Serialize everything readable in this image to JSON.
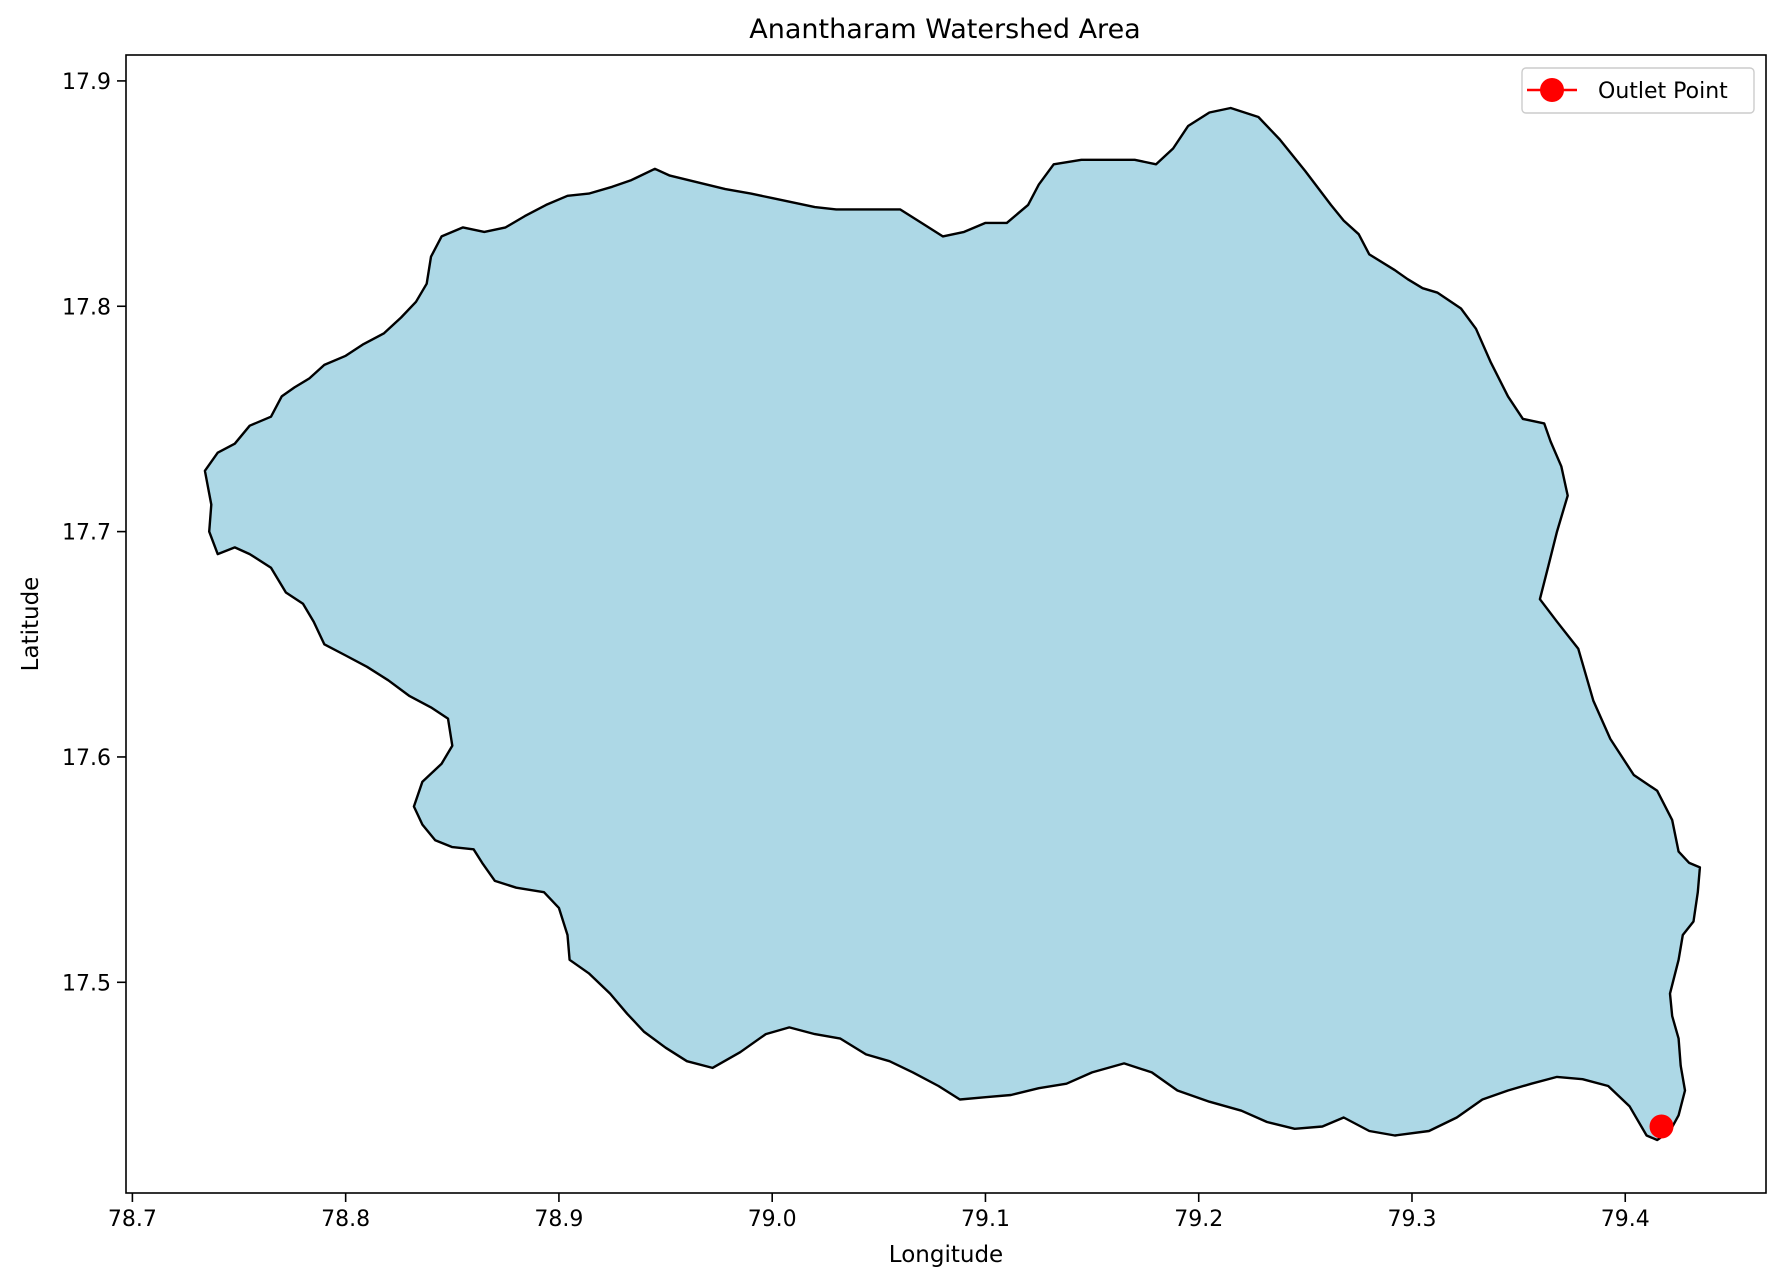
{
  "chart_data": {
    "type": "map",
    "title": "Anantharam Watershed Area",
    "xlabel": "Longitude",
    "ylabel": "Latitude",
    "xlim": [
      78.697,
      79.466
    ],
    "ylim": [
      17.4065,
      17.9115
    ],
    "xticks": [
      {
        "value": 78.7,
        "label": "78.7"
      },
      {
        "value": 78.8,
        "label": "78.8"
      },
      {
        "value": 78.9,
        "label": "78.9"
      },
      {
        "value": 79.0,
        "label": "79.0"
      },
      {
        "value": 79.1,
        "label": "79.1"
      },
      {
        "value": 79.2,
        "label": "79.2"
      },
      {
        "value": 79.3,
        "label": "79.3"
      },
      {
        "value": 79.4,
        "label": "79.4"
      }
    ],
    "yticks": [
      {
        "value": 17.5,
        "label": "17.5"
      },
      {
        "value": 17.6,
        "label": "17.6"
      },
      {
        "value": 17.7,
        "label": "17.7"
      },
      {
        "value": 17.8,
        "label": "17.8"
      },
      {
        "value": 17.9,
        "label": "17.9"
      }
    ],
    "grid": false,
    "legend": {
      "position": "top-right",
      "entries": [
        {
          "label": "Outlet Point",
          "color": "#ff0000",
          "marker": "circle-line"
        }
      ]
    },
    "watershed": {
      "fill_color": "#add8e6",
      "edge_color": "#000000",
      "boundary": [
        [
          78.734,
          17.727
        ],
        [
          78.74,
          17.735
        ],
        [
          78.748,
          17.739
        ],
        [
          78.755,
          17.747
        ],
        [
          78.765,
          17.751
        ],
        [
          78.77,
          17.76
        ],
        [
          78.776,
          17.764
        ],
        [
          78.783,
          17.768
        ],
        [
          78.79,
          17.774
        ],
        [
          78.8,
          17.778
        ],
        [
          78.808,
          17.783
        ],
        [
          78.818,
          17.788
        ],
        [
          78.826,
          17.795
        ],
        [
          78.833,
          17.802
        ],
        [
          78.838,
          17.81
        ],
        [
          78.84,
          17.822
        ],
        [
          78.845,
          17.831
        ],
        [
          78.855,
          17.835
        ],
        [
          78.865,
          17.833
        ],
        [
          78.875,
          17.835
        ],
        [
          78.884,
          17.84
        ],
        [
          78.894,
          17.845
        ],
        [
          78.904,
          17.849
        ],
        [
          78.914,
          17.85
        ],
        [
          78.925,
          17.853
        ],
        [
          78.934,
          17.856
        ],
        [
          78.945,
          17.861
        ],
        [
          78.952,
          17.858
        ],
        [
          78.965,
          17.855
        ],
        [
          78.978,
          17.852
        ],
        [
          78.99,
          17.85
        ],
        [
          79.0,
          17.848
        ],
        [
          79.01,
          17.846
        ],
        [
          79.02,
          17.844
        ],
        [
          79.03,
          17.843
        ],
        [
          79.04,
          17.843
        ],
        [
          79.05,
          17.843
        ],
        [
          79.06,
          17.843
        ],
        [
          79.07,
          17.837
        ],
        [
          79.08,
          17.831
        ],
        [
          79.09,
          17.833
        ],
        [
          79.1,
          17.837
        ],
        [
          79.11,
          17.837
        ],
        [
          79.12,
          17.845
        ],
        [
          79.125,
          17.854
        ],
        [
          79.132,
          17.863
        ],
        [
          79.145,
          17.865
        ],
        [
          79.158,
          17.865
        ],
        [
          79.17,
          17.865
        ],
        [
          79.18,
          17.863
        ],
        [
          79.188,
          17.87
        ],
        [
          79.195,
          17.88
        ],
        [
          79.205,
          17.886
        ],
        [
          79.215,
          17.888
        ],
        [
          79.228,
          17.884
        ],
        [
          79.238,
          17.874
        ],
        [
          79.25,
          17.86
        ],
        [
          79.262,
          17.845
        ],
        [
          79.268,
          17.838
        ],
        [
          79.275,
          17.832
        ],
        [
          79.28,
          17.823
        ],
        [
          79.292,
          17.816
        ],
        [
          79.298,
          17.812
        ],
        [
          79.305,
          17.808
        ],
        [
          79.312,
          17.806
        ],
        [
          79.323,
          17.799
        ],
        [
          79.33,
          17.79
        ],
        [
          79.337,
          17.775
        ],
        [
          79.345,
          17.76
        ],
        [
          79.352,
          17.75
        ],
        [
          79.362,
          17.748
        ],
        [
          79.365,
          17.74
        ],
        [
          79.37,
          17.729
        ],
        [
          79.373,
          17.716
        ],
        [
          79.368,
          17.7
        ],
        [
          79.364,
          17.685
        ],
        [
          79.36,
          17.67
        ],
        [
          79.368,
          17.66
        ],
        [
          79.378,
          17.648
        ],
        [
          79.385,
          17.625
        ],
        [
          79.393,
          17.608
        ],
        [
          79.404,
          17.592
        ],
        [
          79.415,
          17.585
        ],
        [
          79.422,
          17.572
        ],
        [
          79.425,
          17.558
        ],
        [
          79.43,
          17.553
        ],
        [
          79.435,
          17.551
        ],
        [
          79.434,
          17.54
        ],
        [
          79.432,
          17.527
        ],
        [
          79.427,
          17.521
        ],
        [
          79.425,
          17.51
        ],
        [
          79.421,
          17.495
        ],
        [
          79.422,
          17.485
        ],
        [
          79.425,
          17.475
        ],
        [
          79.426,
          17.463
        ],
        [
          79.428,
          17.452
        ],
        [
          79.425,
          17.441
        ],
        [
          79.421,
          17.434
        ],
        [
          79.415,
          17.43
        ],
        [
          79.41,
          17.432
        ],
        [
          79.402,
          17.445
        ],
        [
          79.392,
          17.454
        ],
        [
          79.38,
          17.457
        ],
        [
          79.368,
          17.458
        ],
        [
          79.356,
          17.455
        ],
        [
          79.345,
          17.452
        ],
        [
          79.333,
          17.448
        ],
        [
          79.321,
          17.44
        ],
        [
          79.308,
          17.434
        ],
        [
          79.292,
          17.432
        ],
        [
          79.28,
          17.434
        ],
        [
          79.268,
          17.44
        ],
        [
          79.258,
          17.436
        ],
        [
          79.245,
          17.435
        ],
        [
          79.232,
          17.438
        ],
        [
          79.22,
          17.443
        ],
        [
          79.205,
          17.447
        ],
        [
          79.19,
          17.452
        ],
        [
          79.178,
          17.46
        ],
        [
          79.165,
          17.464
        ],
        [
          79.15,
          17.46
        ],
        [
          79.138,
          17.455
        ],
        [
          79.125,
          17.453
        ],
        [
          79.112,
          17.45
        ],
        [
          79.1,
          17.449
        ],
        [
          79.088,
          17.448
        ],
        [
          79.078,
          17.454
        ],
        [
          79.066,
          17.46
        ],
        [
          79.055,
          17.465
        ],
        [
          79.044,
          17.468
        ],
        [
          79.032,
          17.475
        ],
        [
          79.02,
          17.477
        ],
        [
          79.008,
          17.48
        ],
        [
          78.997,
          17.477
        ],
        [
          78.985,
          17.469
        ],
        [
          78.972,
          17.462
        ],
        [
          78.96,
          17.465
        ],
        [
          78.95,
          17.471
        ],
        [
          78.94,
          17.478
        ],
        [
          78.932,
          17.486
        ],
        [
          78.924,
          17.495
        ],
        [
          78.914,
          17.504
        ],
        [
          78.905,
          17.51
        ],
        [
          78.904,
          17.521
        ],
        [
          78.9,
          17.533
        ],
        [
          78.893,
          17.54
        ],
        [
          78.88,
          17.542
        ],
        [
          78.87,
          17.545
        ],
        [
          78.864,
          17.553
        ],
        [
          78.86,
          17.559
        ],
        [
          78.85,
          17.56
        ],
        [
          78.842,
          17.563
        ],
        [
          78.836,
          17.57
        ],
        [
          78.832,
          17.578
        ],
        [
          78.836,
          17.589
        ],
        [
          78.845,
          17.597
        ],
        [
          78.85,
          17.605
        ],
        [
          78.848,
          17.617
        ],
        [
          78.84,
          17.622
        ],
        [
          78.83,
          17.627
        ],
        [
          78.82,
          17.634
        ],
        [
          78.81,
          17.64
        ],
        [
          78.8,
          17.645
        ],
        [
          78.79,
          17.65
        ],
        [
          78.785,
          17.66
        ],
        [
          78.78,
          17.668
        ],
        [
          78.772,
          17.673
        ],
        [
          78.765,
          17.684
        ],
        [
          78.755,
          17.69
        ],
        [
          78.748,
          17.693
        ],
        [
          78.74,
          17.69
        ],
        [
          78.736,
          17.7
        ],
        [
          78.737,
          17.712
        ],
        [
          78.734,
          17.727
        ]
      ]
    },
    "outlet_point": {
      "label": "Outlet Point",
      "lon": 79.417,
      "lat": 17.436,
      "color": "#ff0000"
    }
  }
}
